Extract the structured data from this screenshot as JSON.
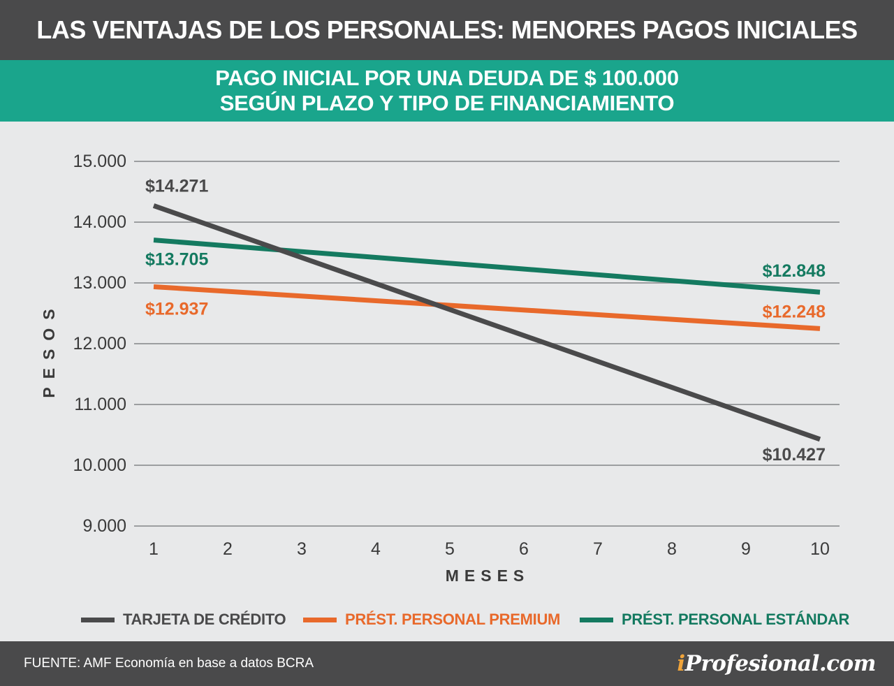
{
  "header": {
    "title": "LAS VENTAJAS DE LOS PERSONALES: MENORES PAGOS INICIALES",
    "subtitle_line1": "PAGO INICIAL POR UNA DEUDA DE $ 100.000",
    "subtitle_line2": "SEGÚN PLAZO Y TIPO DE FINANCIAMIENTO"
  },
  "colors": {
    "header_bg": "#4a4a4b",
    "subheader_bg": "#1aa58c",
    "tarjeta": "#4a4a4b",
    "premium": "#e8692b",
    "estandar": "#147a60",
    "grid": "#9c9ea0"
  },
  "chart_data": {
    "type": "line",
    "xlabel": "M E S E S",
    "ylabel": "P E S O S",
    "xlim": [
      1,
      10
    ],
    "ylim": [
      9000,
      15000
    ],
    "x_ticks": [
      1,
      2,
      3,
      4,
      5,
      6,
      7,
      8,
      9,
      10
    ],
    "y_ticks": [
      9000,
      10000,
      11000,
      12000,
      13000,
      14000,
      15000
    ],
    "y_tick_labels": [
      "9.000",
      "10.000",
      "11.000",
      "12.000",
      "13.000",
      "14.000",
      "15.000"
    ],
    "grid": true,
    "legend_position": "bottom",
    "series": [
      {
        "key": "tarjeta",
        "name": "TARJETA DE CRÉDITO",
        "x": [
          1,
          10
        ],
        "values": [
          14271,
          10427
        ],
        "labels": [
          "$14.271",
          "$10.427"
        ]
      },
      {
        "key": "premium",
        "name": "PRÉST. PERSONAL PREMIUM",
        "x": [
          1,
          10
        ],
        "values": [
          12937,
          12248
        ],
        "labels": [
          "$12.937",
          "$12.248"
        ]
      },
      {
        "key": "estandar",
        "name": "PRÉST. PERSONAL ESTÁNDAR",
        "x": [
          1,
          10
        ],
        "values": [
          13705,
          12848
        ],
        "labels": [
          "$13.705",
          "$12.848"
        ]
      }
    ]
  },
  "footer": {
    "source": "FUENTE: AMF Economía en base a datos BCRA",
    "logo_i": "i",
    "logo_rest": "Profesional.com"
  }
}
